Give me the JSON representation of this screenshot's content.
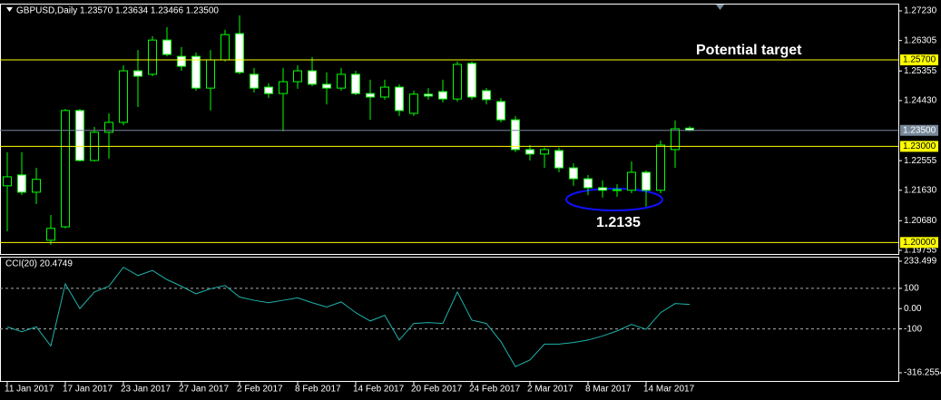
{
  "chart_data": [
    {
      "type": "candlestick",
      "title": "GBPUSD,Daily  1.23570 1.23634 1.23466 1.23500",
      "annotations": [
        "Potential target",
        "1.2135"
      ],
      "categories": [
        "11 Jan 2017",
        null,
        null,
        null,
        "17 Jan 2017",
        null,
        null,
        null,
        "23 Jan 2017",
        null,
        null,
        null,
        "27 Jan 2017",
        null,
        null,
        null,
        "2 Feb 2017",
        null,
        null,
        null,
        "8 Feb 2017",
        null,
        null,
        null,
        "14 Feb 2017",
        null,
        null,
        null,
        "20 Feb 2017",
        null,
        null,
        null,
        "24 Feb 2017",
        null,
        null,
        null,
        "2 Mar 2017",
        null,
        null,
        null,
        "8 Mar 2017",
        null,
        null,
        null,
        "14 Mar 2017",
        null,
        null,
        null
      ],
      "open": [
        1.2177,
        1.2211,
        1.2157,
        1.2007,
        1.2049,
        1.2412,
        1.2256,
        1.2344,
        1.2375,
        1.2536,
        1.2525,
        1.2632,
        1.2581,
        1.2581,
        1.2482,
        1.257,
        1.2652,
        1.2525,
        1.2485,
        1.2465,
        1.2502,
        1.2536,
        1.2494,
        1.2482,
        1.2525,
        1.2465,
        1.2454,
        1.2485,
        1.2403,
        1.2463,
        1.2471,
        1.2448,
        1.2559,
        1.2474,
        1.244,
        1.2383,
        1.229,
        1.2276,
        1.2287,
        1.2233,
        1.2199,
        1.2171,
        1.2165,
        1.2163,
        1.2219,
        1.2163,
        1.229,
        1.2357
      ],
      "high": [
        1.2282,
        1.2282,
        1.2233,
        1.2086,
        1.2417,
        1.2417,
        1.2361,
        1.2403,
        1.2553,
        1.2601,
        1.2644,
        1.2672,
        1.261,
        1.2593,
        1.2601,
        1.2664,
        1.2709,
        1.2545,
        1.2497,
        1.2545,
        1.2553,
        1.2579,
        1.2531,
        1.2545,
        1.2536,
        1.2508,
        1.2508,
        1.2494,
        1.2474,
        1.2482,
        1.2508,
        1.2565,
        1.2565,
        1.2482,
        1.2451,
        1.2395,
        1.2304,
        1.2296,
        1.2296,
        1.2247,
        1.2211,
        1.2194,
        1.2182,
        1.2253,
        1.2225,
        1.2318,
        1.2381,
        1.2363
      ],
      "low": [
        1.2035,
        1.2148,
        1.212,
        1.1993,
        1.2044,
        1.2253,
        1.2253,
        1.2262,
        1.2366,
        1.2423,
        1.2519,
        1.2581,
        1.2536,
        1.2474,
        1.2412,
        1.2565,
        1.2525,
        1.2468,
        1.2451,
        1.2347,
        1.248,
        1.2488,
        1.2431,
        1.2474,
        1.246,
        1.2383,
        1.2446,
        1.2395,
        1.2395,
        1.2446,
        1.2437,
        1.244,
        1.2446,
        1.2431,
        1.2375,
        1.2282,
        1.2256,
        1.2233,
        1.2219,
        1.2177,
        1.2148,
        1.214,
        1.2143,
        1.2154,
        1.2112,
        1.2154,
        1.2233,
        1.2347
      ],
      "close": [
        1.2205,
        1.2157,
        1.2197,
        1.2044,
        1.2412,
        1.2256,
        1.2344,
        1.2375,
        1.2536,
        1.2519,
        1.2632,
        1.2587,
        1.255,
        1.2482,
        1.257,
        1.2649,
        1.2531,
        1.2482,
        1.2465,
        1.2502,
        1.2536,
        1.2494,
        1.2482,
        1.2525,
        1.2465,
        1.2454,
        1.2485,
        1.2412,
        1.2463,
        1.2457,
        1.2448,
        1.2556,
        1.2454,
        1.2446,
        1.2383,
        1.229,
        1.2276,
        1.229,
        1.2233,
        1.2199,
        1.2171,
        1.2163,
        1.2163,
        1.2219,
        1.2163,
        1.2304,
        1.2355,
        1.235
      ],
      "up_color": "#000000",
      "down_color": "#ffffff",
      "outline_color": "#00ff00",
      "ylim": [
        1.19755,
        1.2723
      ],
      "yticks": [
        {
          "value": 1.2723,
          "label": "1.27230"
        },
        1.26305,
        1.25355,
        {
          "value": 1.2443,
          "label": "1.24430"
        },
        1.22555,
        {
          "value": 1.2163,
          "label": "1.21630"
        },
        {
          "value": 1.2068,
          "label": "1.20680"
        },
        1.19755
      ],
      "levels": [
        {
          "value": 1.257,
          "label": "1.25700"
        },
        {
          "value": 1.23,
          "label": "1.23000"
        },
        {
          "value": 1.2,
          "label": "1.20000"
        }
      ],
      "level_color": "#ffff00",
      "bid": {
        "value": 1.235,
        "label": "1.23500"
      },
      "bid_color": "#778899"
    },
    {
      "type": "line",
      "title": "CCI(20) 20.4749",
      "values": [
        -90,
        -114,
        -90,
        -184,
        122,
        0,
        82,
        110,
        204,
        163,
        188,
        143,
        110,
        73,
        98,
        114,
        57,
        41,
        29,
        41,
        53,
        29,
        8,
        33,
        -20,
        -61,
        -33,
        -155,
        -73,
        -69,
        -73,
        82,
        -57,
        -73,
        -163,
        -286,
        -253,
        -175,
        -175,
        -167,
        -155,
        -135,
        -110,
        -78,
        -102,
        -20,
        25,
        20.4749
      ],
      "color": "#20b2aa",
      "ylim": [
        -316.2554,
        233.499
      ],
      "yticks": [
        233.499,
        100,
        {
          "value": 0,
          "label": "0.00"
        },
        -100,
        -316.2554
      ],
      "dashed_levels": [
        100,
        -100
      ]
    }
  ]
}
